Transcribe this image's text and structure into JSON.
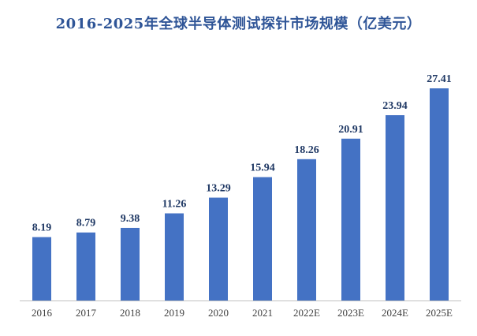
{
  "chart_data": {
    "type": "bar",
    "title": "2016-2025年全球半导体测试探针市场规模（亿美元）",
    "categories": [
      "2016",
      "2017",
      "2018",
      "2019",
      "2020",
      "2021",
      "2022E",
      "2023E",
      "2024E",
      "2025E"
    ],
    "values": [
      8.19,
      8.79,
      9.38,
      11.26,
      13.29,
      15.94,
      18.26,
      20.91,
      23.94,
      27.41
    ],
    "data_labels": [
      "8.19",
      "8.79",
      "9.38",
      "11.26",
      "13.29",
      "15.94",
      "18.26",
      "20.91",
      "23.94",
      "27.41"
    ],
    "xlabel": "",
    "ylabel": "",
    "ylim": [
      0,
      27.41
    ],
    "grid": false,
    "legend": "none",
    "colors": {
      "bar": "#4472c4",
      "title": "#2f5597",
      "value_label": "#1f3864",
      "axis": "#bfbfbf",
      "tick_label": "#404040"
    }
  }
}
